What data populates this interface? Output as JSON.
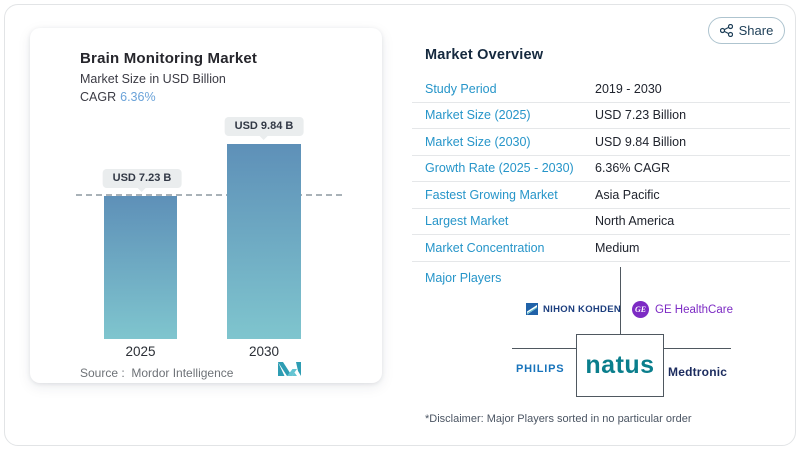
{
  "share": {
    "label": "Share"
  },
  "chart_panel": {
    "title": "Brain Monitoring Market",
    "subtitle": "Market Size in USD Billion",
    "cagr_label": "CAGR",
    "cagr_value": "6.36%",
    "source_label": "Source :",
    "source_value": "Mordor Intelligence"
  },
  "chart_data": {
    "type": "bar",
    "title": "Brain Monitoring Market",
    "subtitle": "Market Size in USD Billion",
    "categories": [
      "2025",
      "2030"
    ],
    "values": [
      7.23,
      9.84
    ],
    "value_labels": [
      "USD 7.23 B",
      "USD 9.84 B"
    ],
    "unit": "USD Billion",
    "ylim": [
      0,
      10
    ],
    "reference_line": 7.23,
    "grid": "single dashed horizontal reference line at 2025 value",
    "bar_gradient_top": "#5e90b8",
    "bar_gradient_bottom": "#7fc5ce"
  },
  "overview": {
    "heading": "Market Overview",
    "rows": [
      {
        "label": "Study Period",
        "value": "2019 - 2030"
      },
      {
        "label": "Market Size (2025)",
        "value": "USD 7.23 Billion"
      },
      {
        "label": "Market Size (2030)",
        "value": "USD 9.84 Billion"
      },
      {
        "label": "Growth Rate (2025 - 2030)",
        "value": "6.36% CAGR"
      },
      {
        "label": "Fastest Growing Market",
        "value": "Asia Pacific"
      },
      {
        "label": "Largest Market",
        "value": "North America"
      },
      {
        "label": "Market Concentration",
        "value": "Medium"
      }
    ],
    "major_players_label": "Major Players",
    "players": {
      "nihon": "NIHON KOHDEN",
      "ge": "GE HealthCare",
      "ge_monogram": "GE",
      "philips": "PHILIPS",
      "natus": "natus",
      "medtronic": "Medtronic"
    },
    "disclaimer": "*Disclaimer: Major Players sorted in no particular order"
  },
  "colors": {
    "accent_blue_label": "#2695c9",
    "cagr_blue": "#6ba3d9",
    "heading_navy": "#15293e",
    "value_text": "#20242e",
    "divider": "#e5e7e9",
    "org_line": "#4f5860",
    "nihon_navy": "#1c3e7e",
    "ge_purple": "#7d2bc4",
    "philips_blue": "#1773bb",
    "natus_teal": "#0a7e8c",
    "medtronic_navy": "#1b2b5e",
    "share_navy": "#1d3e57"
  }
}
